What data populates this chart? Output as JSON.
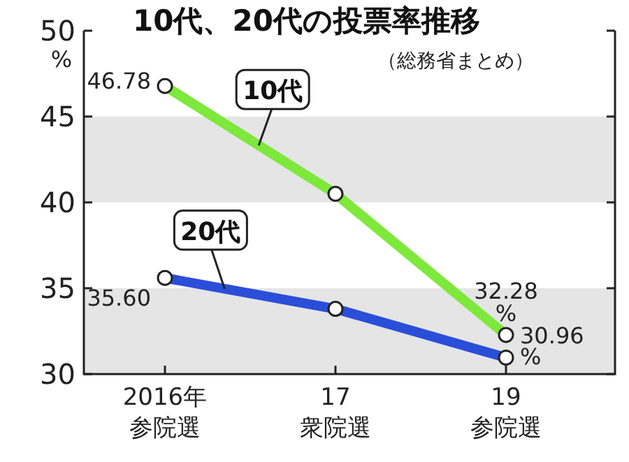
{
  "chart_data": {
    "type": "line",
    "title": "10代、20代の投票率推移",
    "subtitle": "（総務省まとめ）",
    "ylabel": "%",
    "categories": [
      "2016年参院選",
      "17衆院選",
      "19参院選"
    ],
    "series": [
      {
        "name": "10代",
        "color": "#7ee83c",
        "values": [
          46.78,
          40.5,
          32.28
        ],
        "value_labels": [
          "46.78",
          null,
          "32.28\n%"
        ]
      },
      {
        "name": "20代",
        "color": "#2a4ed8",
        "values": [
          35.6,
          33.8,
          30.96
        ],
        "value_labels": [
          "35.60",
          null,
          "30.96\n%"
        ]
      }
    ],
    "ylim": [
      30,
      50
    ],
    "yticks": [
      30,
      35,
      40,
      45,
      50
    ],
    "marker": "circle",
    "grid": false,
    "bands": [
      {
        "axis": "y",
        "from": 40,
        "to": 45,
        "color": "#e5e5e5"
      },
      {
        "axis": "y",
        "from": 30,
        "to": 35,
        "color": "#e5e5e5"
      }
    ]
  }
}
